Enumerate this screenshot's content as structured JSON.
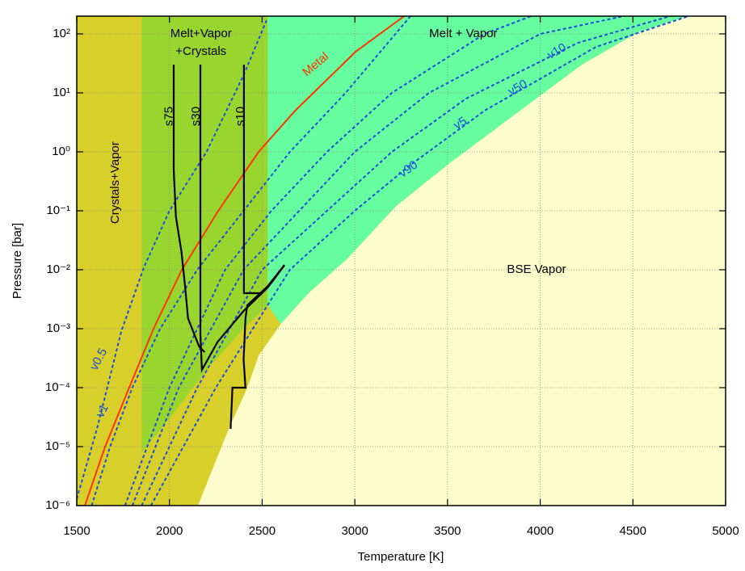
{
  "chart_data": {
    "type": "line",
    "xlabel": "Temperature [K]",
    "ylabel": "Pressure [bar]",
    "xlim": [
      1500,
      5000
    ],
    "ylim": [
      1e-06,
      200
    ],
    "ylog": true,
    "grid": true,
    "xticks": [
      1500,
      2000,
      2500,
      3000,
      3500,
      4000,
      4500,
      5000
    ],
    "yticks": [
      {
        "value": 1e-06,
        "label": "10⁻⁶"
      },
      {
        "value": 1e-05,
        "label": "10⁻⁵"
      },
      {
        "value": 0.0001,
        "label": "10⁻⁴"
      },
      {
        "value": 0.001,
        "label": "10⁻³"
      },
      {
        "value": 0.01,
        "label": "10⁻²"
      },
      {
        "value": 0.1,
        "label": "10⁻¹"
      },
      {
        "value": 1,
        "label": "10⁰"
      },
      {
        "value": 10,
        "label": "10¹"
      },
      {
        "value": 100,
        "label": "10²"
      }
    ],
    "regions": [
      {
        "label": [
          "Crystals+Vapor"
        ],
        "color": "#d9cf2a",
        "x": [
          1500,
          5000,
          5000,
          1500
        ],
        "y": [
          1e-06,
          1e-06,
          200,
          200
        ]
      },
      {
        "label": [
          "Melt+Vapor",
          "+Crystals"
        ],
        "color": "#99d52f",
        "x": [
          1850,
          2530,
          2530,
          2400,
          2200,
          2000,
          1850
        ],
        "y": [
          200,
          200,
          0.0025,
          0.001,
          0.0002,
          3e-05,
          8e-06
        ]
      },
      {
        "label": [
          "Melt + Vapor"
        ],
        "color": "#66fca0",
        "x": [
          2530,
          4791,
          4530,
          4224,
          3876,
          3527,
          3222,
          2960,
          2750,
          2600,
          2530
        ],
        "y": [
          200,
          200,
          107,
          30,
          4.6,
          0.7,
          0.12,
          0.0155,
          0.004,
          0.0012,
          0.0025
        ]
      },
      {
        "label": [
          "BSE Vapor"
        ],
        "color": "#fdfccb",
        "x": [
          2154,
          2230,
          2320,
          2420,
          2481,
          2600,
          2750,
          2960,
          3222,
          3527,
          3876,
          4224,
          4530,
          4791,
          5000,
          5000
        ],
        "y": [
          1e-06,
          4e-06,
          2e-05,
          0.0001,
          0.00035,
          0.0012,
          0.004,
          0.0155,
          0.12,
          0.7,
          4.6,
          30,
          107,
          200,
          200,
          1e-06
        ]
      }
    ],
    "series": [
      {
        "name": "v0.5",
        "color": "#1a4fd8",
        "dashed": true,
        "x": [
          1500,
          1609,
          1740,
          1862,
          2000,
          2200,
          2400,
          2524
        ],
        "values": [
          1.3e-06,
          2e-05,
          0.0009,
          0.011,
          0.1,
          1,
          20,
          170
        ]
      },
      {
        "name": "v1",
        "color": "#1a4fd8",
        "dashed": true,
        "x": [
          1580,
          1680,
          1800,
          1950,
          2150,
          2400,
          2650,
          2950,
          3300
        ],
        "values": [
          1e-06,
          1e-05,
          0.0001,
          0.001,
          0.01,
          0.1,
          1,
          10,
          200
        ]
      },
      {
        "name": "v5",
        "color": "#1a4fd8",
        "dashed": true,
        "x": [
          1760,
          2000,
          2300,
          2550,
          2850,
          3200,
          3700,
          3950
        ],
        "values": [
          1e-06,
          0.0001,
          0.01,
          0.1,
          1,
          10,
          100,
          200
        ]
      },
      {
        "name": "v10",
        "color": "#1a4fd8",
        "dashed": true,
        "x": [
          1800,
          2050,
          2400,
          2700,
          3000,
          3400,
          4000,
          4450
        ],
        "values": [
          1e-06,
          0.0001,
          0.01,
          0.1,
          1,
          10,
          100,
          200
        ]
      },
      {
        "name": "v50",
        "color": "#1a4fd8",
        "dashed": true,
        "x": [
          1850,
          2150,
          2500,
          2850,
          3200,
          3600,
          4200,
          4700
        ],
        "values": [
          1e-06,
          0.0001,
          0.01,
          0.1,
          1,
          8,
          70,
          200
        ]
      },
      {
        "name": "v90",
        "color": "#1a4fd8",
        "dashed": true,
        "x": [
          1900,
          2250,
          2650,
          3000,
          3300,
          3700,
          4300,
          4800
        ],
        "values": [
          1e-06,
          0.0001,
          0.01,
          0.1,
          0.6,
          5,
          60,
          200
        ]
      },
      {
        "name": "Metal",
        "color": "#ff3300",
        "dashed": false,
        "x": [
          1544,
          1653,
          1783,
          1914,
          2067,
          2263,
          2481,
          2678,
          3004,
          3266
        ],
        "values": [
          1e-06,
          1e-05,
          0.0001,
          0.001,
          0.01,
          0.1,
          1,
          5,
          50,
          200
        ]
      },
      {
        "name": "s75",
        "color": "#000000",
        "dashed": false,
        "x": [
          2023,
          2023,
          2035,
          2065,
          2085,
          2100,
          2160,
          2190
        ],
        "values": [
          30,
          0.5,
          0.08,
          0.02,
          0.005,
          0.0015,
          0.0005,
          0.0004
        ]
      },
      {
        "name": "s30",
        "color": "#000000",
        "dashed": false,
        "x": [
          2167,
          2167,
          2175,
          2260,
          2400,
          2530,
          2620
        ],
        "values": [
          30,
          0.0008,
          0.0002,
          0.0006,
          0.002,
          0.005,
          0.012
        ]
      },
      {
        "name": "s10",
        "color": "#000000",
        "dashed": false,
        "x": [
          2402,
          2402,
          2500,
          2620,
          2550,
          2420,
          2410,
          2400,
          2410,
          2340,
          2330
        ],
        "values": [
          30,
          0.004,
          0.004,
          0.012,
          0.006,
          0.0025,
          0.0015,
          0.0003,
          0.0001,
          0.0001,
          2e-05
        ]
      }
    ]
  }
}
